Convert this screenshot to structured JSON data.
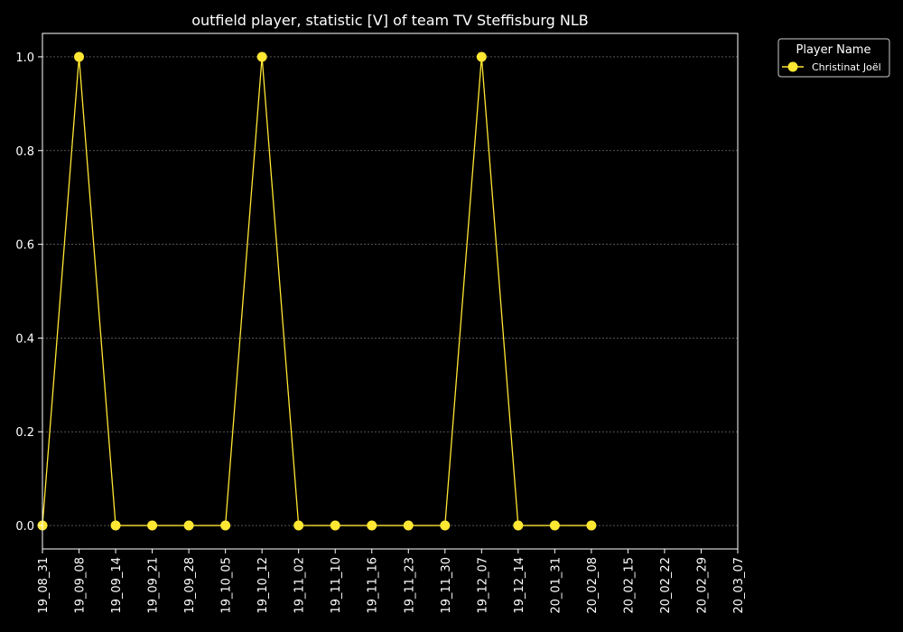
{
  "chart_data": {
    "type": "line",
    "title": "outfield player, statistic [V] of team TV Steffisburg NLB",
    "xlabel": "",
    "ylabel": "",
    "categories": [
      "19_08_31",
      "19_09_08",
      "19_09_14",
      "19_09_21",
      "19_09_28",
      "19_10_05",
      "19_10_12",
      "19_11_02",
      "19_11_10",
      "19_11_16",
      "19_11_23",
      "19_11_30",
      "19_12_07",
      "19_12_14",
      "20_01_31",
      "20_02_08",
      "20_02_15",
      "20_02_22",
      "20_02_29",
      "20_03_07"
    ],
    "ylim": [
      -0.05,
      1.05
    ],
    "yticks": [
      "0.0",
      "0.2",
      "0.4",
      "0.6",
      "0.8",
      "1.0"
    ],
    "grid": "horizontal dashed",
    "series": [
      {
        "name": "Christinat Joël",
        "color": "#ffe733",
        "marker": "circle",
        "values": [
          0,
          1,
          0,
          0,
          0,
          0,
          1,
          0,
          0,
          0,
          0,
          0,
          1,
          0,
          0,
          0,
          null,
          null,
          null,
          null
        ]
      }
    ],
    "legend": {
      "title": "Player Name",
      "placement": "outside-top-right"
    },
    "colors": {
      "background": "#000000",
      "foreground": "#ffffff",
      "grid": "#888888"
    }
  }
}
